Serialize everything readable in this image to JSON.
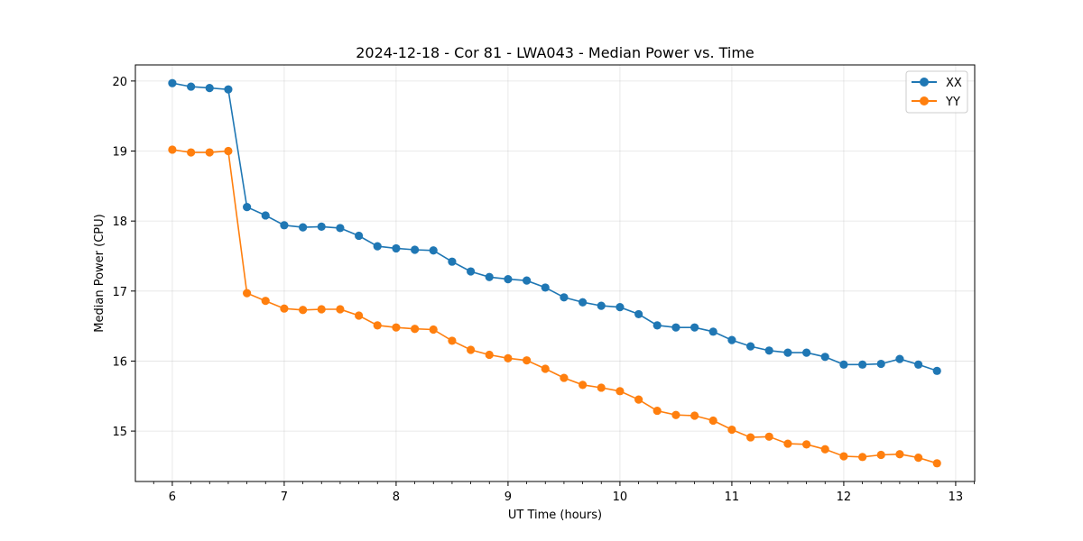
{
  "chart_data": {
    "type": "line",
    "title": "2024-12-18 - Cor 81 - LWA043 - Median Power vs. Time",
    "xlabel": "UT Time (hours)",
    "ylabel": "Median Power (CPU)",
    "xlim": [
      5.67,
      13.17
    ],
    "ylim": [
      14.28,
      20.23
    ],
    "xticks": [
      6,
      7,
      8,
      9,
      10,
      11,
      12,
      13
    ],
    "yticks": [
      15,
      16,
      17,
      18,
      19,
      20
    ],
    "grid": true,
    "legend_position": "top-right",
    "x": [
      6.0,
      6.167,
      6.333,
      6.5,
      6.667,
      6.833,
      7.0,
      7.167,
      7.333,
      7.5,
      7.667,
      7.833,
      8.0,
      8.167,
      8.333,
      8.5,
      8.667,
      8.833,
      9.0,
      9.167,
      9.333,
      9.5,
      9.667,
      9.833,
      10.0,
      10.167,
      10.333,
      10.5,
      10.667,
      10.833,
      11.0,
      11.167,
      11.333,
      11.5,
      11.667,
      11.833,
      12.0,
      12.167,
      12.333,
      12.5,
      12.667,
      12.833
    ],
    "series": [
      {
        "name": "XX",
        "color": "#1f77b4",
        "values": [
          19.97,
          19.92,
          19.9,
          19.88,
          18.2,
          18.08,
          17.94,
          17.91,
          17.92,
          17.9,
          17.79,
          17.64,
          17.61,
          17.59,
          17.58,
          17.42,
          17.28,
          17.2,
          17.17,
          17.15,
          17.05,
          16.91,
          16.84,
          16.79,
          16.77,
          16.67,
          16.51,
          16.48,
          16.48,
          16.42,
          16.3,
          16.21,
          16.15,
          16.12,
          16.12,
          16.06,
          15.95,
          15.95,
          15.96,
          16.03,
          15.95,
          15.86
        ]
      },
      {
        "name": "YY",
        "color": "#ff7f0e",
        "values": [
          19.02,
          18.98,
          18.98,
          19.0,
          16.97,
          16.86,
          16.75,
          16.73,
          16.74,
          16.74,
          16.65,
          16.51,
          16.48,
          16.46,
          16.45,
          16.29,
          16.16,
          16.09,
          16.04,
          16.01,
          15.89,
          15.76,
          15.66,
          15.62,
          15.57,
          15.45,
          15.29,
          15.23,
          15.22,
          15.15,
          15.02,
          14.91,
          14.92,
          14.82,
          14.81,
          14.74,
          14.64,
          14.63,
          14.66,
          14.67,
          14.62,
          14.54
        ]
      }
    ]
  }
}
